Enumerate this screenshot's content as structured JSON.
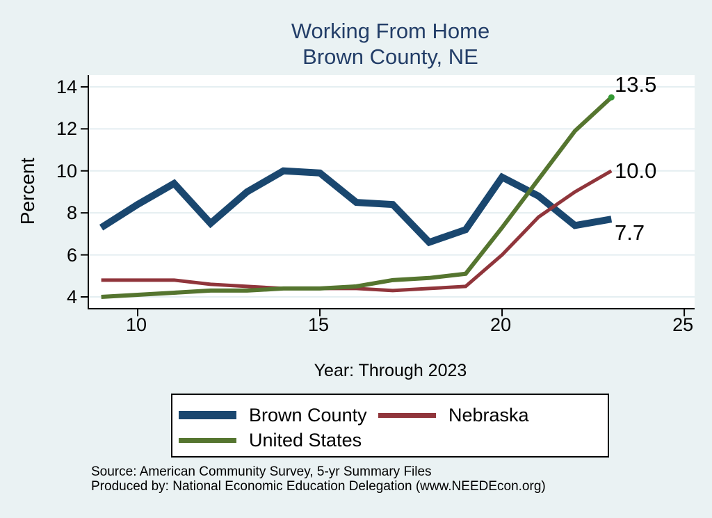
{
  "chart_data": {
    "type": "line",
    "title_line1": "Working From Home",
    "title_line2": "Brown County, NE",
    "xlabel": "Year: Through 2023",
    "ylabel": "Percent",
    "x": [
      9,
      10,
      11,
      12,
      13,
      14,
      15,
      16,
      17,
      18,
      19,
      20,
      21,
      22,
      23
    ],
    "x_ticks": [
      10,
      15,
      20,
      25
    ],
    "y_ticks": [
      4,
      6,
      8,
      10,
      12,
      14
    ],
    "xlim": [
      8.664,
      25.284
    ],
    "ylim": [
      3.47,
      14.56
    ],
    "grid": "horizontal",
    "legend_position": "bottom",
    "series": [
      {
        "name": "Brown County",
        "color": "#1a476f",
        "line_width": 10,
        "values": [
          7.3,
          8.4,
          9.4,
          7.5,
          9.0,
          10.0,
          9.9,
          8.5,
          8.4,
          6.6,
          7.2,
          9.7,
          8.8,
          7.4,
          7.7
        ]
      },
      {
        "name": "Nebraska",
        "color": "#90353b",
        "line_width": 5,
        "values": [
          4.8,
          4.8,
          4.8,
          4.6,
          4.5,
          4.4,
          4.4,
          4.4,
          4.3,
          4.4,
          4.5,
          6.0,
          7.8,
          9.0,
          10.0
        ]
      },
      {
        "name": "United States",
        "color": "#55752f",
        "line_width": 6,
        "end_marker_color": "#339933",
        "values": [
          4.0,
          4.1,
          4.2,
          4.3,
          4.3,
          4.4,
          4.4,
          4.5,
          4.8,
          4.9,
          5.1,
          7.3,
          9.6,
          11.9,
          13.5
        ]
      }
    ],
    "end_labels": [
      {
        "text": "13.5",
        "value": 13.5,
        "dy": -18
      },
      {
        "text": "10.0",
        "value": 10.0,
        "dy": 0
      },
      {
        "text": "7.7",
        "value": 7.7,
        "dy": 20
      }
    ]
  },
  "legend": {
    "items": [
      {
        "label": "Brown County"
      },
      {
        "label": "Nebraska"
      },
      {
        "label": "United States"
      }
    ]
  },
  "footer": {
    "source": "Source: American Community Survey, 5-yr Summary Files",
    "produced": "Produced by: National Economic Education Delegation (www.NEEDEcon.org)"
  },
  "colors": {
    "background": "#eaf2f3",
    "plot_background": "#ffffff",
    "gridline": "#e4eef1",
    "axis": "#000000",
    "title": "#233e68",
    "text": "#000000"
  }
}
